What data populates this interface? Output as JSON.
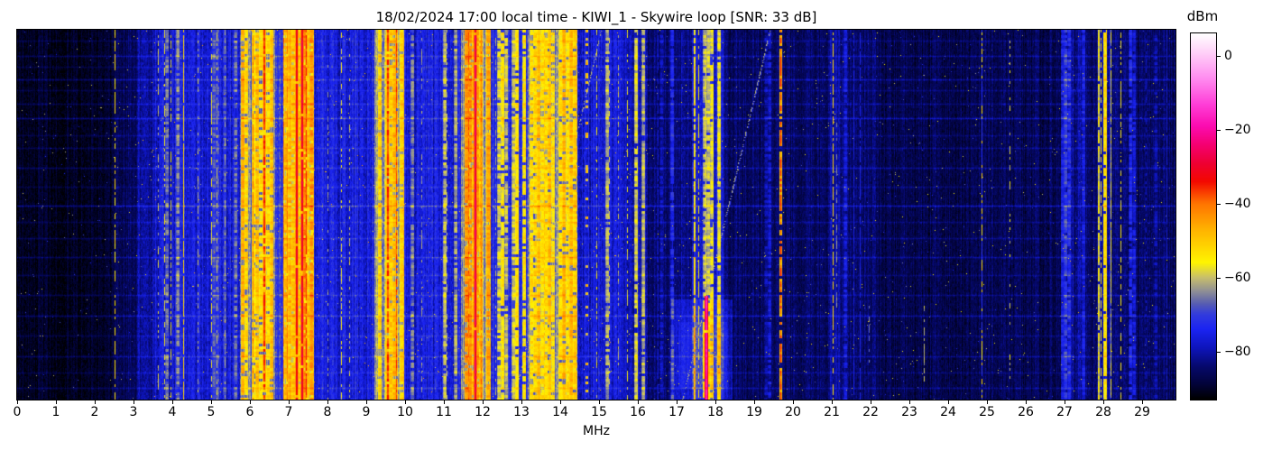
{
  "title": "18/02/2024 17:00 local time - KIWI_1 - Skywire loop [SNR: 33 dB]",
  "x_axis": {
    "label": "MHz",
    "tick_labels": [
      "0",
      "1",
      "2",
      "3",
      "4",
      "5",
      "6",
      "7",
      "8",
      "9",
      "10",
      "11",
      "12",
      "13",
      "14",
      "15",
      "16",
      "17",
      "18",
      "19",
      "20",
      "21",
      "22",
      "23",
      "24",
      "25",
      "26",
      "27",
      "28",
      "29"
    ]
  },
  "colorbar": {
    "label": "dBm",
    "ticks": [
      {
        "label": "0",
        "value": 0
      },
      {
        "label": "−20",
        "value": -20
      },
      {
        "label": "−40",
        "value": -40
      },
      {
        "label": "−60",
        "value": -60
      },
      {
        "label": "−80",
        "value": -80
      }
    ]
  },
  "chart_data": {
    "type": "heatmap",
    "subtype": "radio-spectrogram-waterfall",
    "title": "18/02/2024 17:00 local time - KIWI_1 - Skywire loop [SNR: 33 dB]",
    "xlabel": "MHz",
    "x_range": [
      0,
      29.86
    ],
    "x_tick_values": [
      0,
      1,
      2,
      3,
      4,
      5,
      6,
      7,
      8,
      9,
      10,
      11,
      12,
      13,
      14,
      15,
      16,
      17,
      18,
      19,
      20,
      21,
      22,
      23,
      24,
      25,
      26,
      27,
      28,
      29
    ],
    "y_axis": "time (unlabeled, no ticks)",
    "grid": false,
    "legend": "colorbar right",
    "colorbar": {
      "label": "dBm",
      "tick_values": [
        0,
        -20,
        -40,
        -60,
        -80
      ],
      "vmax": 6,
      "vmin": -93
    },
    "colormap_stops": [
      [
        6,
        "#ffffff"
      ],
      [
        1,
        "#ffd2f8"
      ],
      [
        -6,
        "#ff8df0"
      ],
      [
        -13,
        "#ff40d8"
      ],
      [
        -19,
        "#fb0cb0"
      ],
      [
        -24,
        "#f50072"
      ],
      [
        -29,
        "#ee0034"
      ],
      [
        -34,
        "#f30800"
      ],
      [
        -40,
        "#ff7400"
      ],
      [
        -47,
        "#ffb200"
      ],
      [
        -56,
        "#fff500"
      ],
      [
        -60,
        "#c8bf6b"
      ],
      [
        -64,
        "#8b8c98"
      ],
      [
        -67,
        "#595fb0"
      ],
      [
        -70,
        "#333cdc"
      ],
      [
        -74,
        "#1b24f2"
      ],
      [
        -79,
        "#0e15bd"
      ],
      [
        -84,
        "#06096e"
      ],
      [
        -89,
        "#020338"
      ],
      [
        -93,
        "#000000"
      ]
    ],
    "seed": 7,
    "regions_fields": [
      "f0_mhz",
      "f1_mhz",
      "noise_floor_dbm",
      "station_level_dbm",
      "station_density",
      "noise_amp_db"
    ],
    "regions": [
      [
        0,
        2.44,
        -90.5,
        null,
        0,
        3
      ],
      [
        2.44,
        3.1,
        -86,
        null,
        0,
        4
      ],
      [
        3.1,
        3.55,
        -81,
        null,
        0,
        5
      ],
      [
        3.55,
        4.1,
        -77,
        -66,
        0.25,
        6
      ],
      [
        4.1,
        4.5,
        -76,
        -64,
        0.3,
        6
      ],
      [
        4.5,
        5.75,
        -76.5,
        -66,
        0.35,
        6
      ],
      [
        5.75,
        6.65,
        -67,
        -50,
        0.8,
        6
      ],
      [
        6.65,
        6.87,
        -72,
        -54,
        0.35,
        6
      ],
      [
        6.87,
        7.65,
        -60,
        -45,
        0.88,
        6
      ],
      [
        7.65,
        8.25,
        -75.5,
        -62,
        0.2,
        6
      ],
      [
        8.25,
        8.65,
        -76,
        -58,
        0.3,
        6
      ],
      [
        8.65,
        9.2,
        -76,
        -64,
        0.3,
        6
      ],
      [
        9.2,
        9.97,
        -64,
        -48,
        0.75,
        6
      ],
      [
        9.97,
        11.45,
        -76,
        -62,
        0.18,
        6
      ],
      [
        11.45,
        12.2,
        -63,
        -46,
        0.78,
        6
      ],
      [
        12.2,
        13.15,
        -73.5,
        -57,
        0.4,
        6
      ],
      [
        13.15,
        14.45,
        -67,
        -51,
        0.68,
        6
      ],
      [
        14.45,
        15.55,
        -77,
        -60,
        0.22,
        6
      ],
      [
        15.55,
        16.25,
        -79,
        -60,
        0.3,
        5
      ],
      [
        16.25,
        17.45,
        -84,
        -77,
        0.3,
        4
      ],
      [
        17.45,
        18.2,
        -76,
        -58,
        0.45,
        5
      ],
      [
        18.2,
        19.55,
        -85,
        -79,
        0.2,
        4
      ],
      [
        19.55,
        19.8,
        -83,
        null,
        0,
        4
      ],
      [
        19.8,
        20.9,
        -85.5,
        null,
        0,
        4
      ],
      [
        20.9,
        21.2,
        -81,
        null,
        0,
        4
      ],
      [
        21.2,
        22.2,
        -84.5,
        -76,
        0.25,
        4
      ],
      [
        22.2,
        24.7,
        -87,
        null,
        0,
        4
      ],
      [
        24.7,
        25.45,
        -86,
        null,
        0,
        4
      ],
      [
        25.45,
        26.9,
        -86.5,
        null,
        0,
        4
      ],
      [
        26.9,
        27.55,
        -82,
        -72,
        0.55,
        5
      ],
      [
        27.55,
        27.85,
        -84.5,
        null,
        0,
        4
      ],
      [
        27.85,
        28.2,
        -80,
        -54,
        0.6,
        5
      ],
      [
        28.2,
        28.6,
        -83.5,
        null,
        0,
        4
      ],
      [
        28.6,
        29.45,
        -85.5,
        -78,
        0.15,
        4
      ],
      [
        29.45,
        29.86,
        -85.5,
        null,
        0,
        4
      ]
    ],
    "carriers_fields": [
      "f_mhz",
      "level_dbm",
      "dash_duty",
      "jitter_db",
      "y0_frac",
      "y1_frac",
      "width_px"
    ],
    "carriers": [
      [
        2.5,
        -53,
        0.6,
        6,
        0,
        1,
        1
      ],
      [
        3.62,
        -60,
        0.35,
        6,
        0,
        1,
        1
      ],
      [
        3.79,
        -56,
        0.5,
        6,
        0,
        1,
        1
      ],
      [
        3.95,
        -57,
        0.45,
        6,
        0,
        1,
        1
      ],
      [
        4.27,
        -52,
        0.92,
        5,
        0,
        1,
        1
      ],
      [
        4.65,
        -61,
        0.4,
        6,
        0,
        1,
        1
      ],
      [
        5.0,
        -57,
        0.55,
        6,
        0,
        1,
        1
      ],
      [
        5.14,
        -59,
        0.45,
        6,
        0,
        1,
        1
      ],
      [
        5.36,
        -62,
        0.4,
        6,
        0,
        1,
        1
      ],
      [
        6.07,
        -41,
        0.85,
        7,
        0,
        1,
        1
      ],
      [
        6.35,
        -36,
        0.9,
        7,
        0,
        1,
        2
      ],
      [
        6.95,
        -42,
        0.85,
        7,
        0,
        1,
        1
      ],
      [
        7.18,
        -32,
        0.95,
        6,
        0,
        1,
        2
      ],
      [
        7.32,
        -30,
        0.95,
        6,
        0,
        1,
        2
      ],
      [
        7.44,
        -35,
        0.9,
        6,
        0,
        1,
        1
      ],
      [
        8.0,
        -63,
        0.3,
        6,
        0,
        1,
        1
      ],
      [
        8.35,
        -57,
        0.5,
        6,
        0,
        1,
        1
      ],
      [
        8.56,
        -60,
        0.4,
        6,
        0,
        1,
        1
      ],
      [
        9.53,
        -37,
        0.9,
        7,
        0,
        1,
        2
      ],
      [
        9.76,
        -37,
        0.88,
        7,
        0,
        1,
        1
      ],
      [
        10.42,
        -63,
        0.4,
        6,
        0,
        1,
        1
      ],
      [
        11.08,
        -62,
        0.4,
        6,
        0,
        1,
        1
      ],
      [
        11.62,
        -39,
        0.85,
        7,
        0,
        1,
        1
      ],
      [
        11.79,
        -28,
        0.93,
        6,
        0,
        1,
        2
      ],
      [
        11.95,
        -41,
        0.8,
        7,
        0,
        1,
        1
      ],
      [
        12.32,
        -62,
        0.35,
        6,
        0,
        1,
        1
      ],
      [
        13.58,
        -50,
        0.8,
        7,
        0,
        1,
        1
      ],
      [
        13.72,
        -52,
        0.7,
        7,
        0,
        1,
        1
      ],
      [
        14.22,
        -52,
        0.5,
        8,
        0,
        1,
        1
      ],
      [
        14.68,
        -44,
        0.22,
        10,
        0,
        1,
        1
      ],
      [
        14.92,
        -58,
        0.35,
        6,
        0,
        1,
        1
      ],
      [
        15.25,
        -59,
        0.4,
        6,
        0,
        1,
        1
      ],
      [
        15.48,
        -61,
        0.35,
        6,
        0,
        1,
        1
      ],
      [
        15.72,
        -57,
        0.5,
        6,
        0,
        1,
        1
      ],
      [
        15.97,
        -58,
        0.45,
        6,
        0,
        1,
        1
      ],
      [
        16.12,
        -63,
        0.3,
        6,
        0,
        1,
        1
      ],
      [
        16.52,
        -78,
        0.8,
        4,
        0,
        1,
        1
      ],
      [
        16.88,
        -77,
        0.8,
        4,
        0,
        1,
        1
      ],
      [
        17.12,
        -78,
        0.7,
        4,
        0,
        1,
        1
      ],
      [
        17.56,
        -56,
        0.65,
        6,
        0,
        1,
        1
      ],
      [
        17.75,
        -56,
        0.7,
        6,
        0,
        0.72,
        1
      ],
      [
        17.75,
        -18,
        0.96,
        5,
        0.72,
        1,
        2
      ],
      [
        17.92,
        -57,
        0.6,
        6,
        0,
        1,
        1
      ],
      [
        18.07,
        -59,
        0.5,
        6,
        0,
        1,
        1
      ],
      [
        19.68,
        -36,
        0.8,
        12,
        0,
        1,
        1
      ],
      [
        21.02,
        -52,
        0.65,
        6,
        0,
        1,
        1
      ],
      [
        21.12,
        -64,
        0.5,
        6,
        0.25,
        0.75,
        1
      ],
      [
        21.55,
        -75,
        0.85,
        4,
        0,
        1,
        1
      ],
      [
        21.72,
        -74,
        0.8,
        4,
        0,
        1,
        1
      ],
      [
        21.95,
        -65,
        0.35,
        5,
        0.72,
        0.9,
        1
      ],
      [
        23.37,
        -61,
        0.5,
        5,
        0.74,
        0.95,
        1
      ],
      [
        24.85,
        -72,
        0.95,
        4,
        0,
        1,
        1
      ],
      [
        24.85,
        -54,
        0.3,
        8,
        0,
        1,
        1
      ],
      [
        25.58,
        -59,
        0.3,
        6,
        0,
        1,
        1
      ],
      [
        27.92,
        -54,
        0.6,
        7,
        0,
        1,
        1
      ],
      [
        28.06,
        -52,
        0.65,
        7,
        0,
        1,
        1
      ],
      [
        28.18,
        -56,
        0.5,
        7,
        0,
        1,
        1
      ],
      [
        28.45,
        -56,
        0.55,
        7,
        0,
        1,
        1
      ],
      [
        29.1,
        -79,
        0.5,
        4,
        0,
        1,
        1
      ],
      [
        29.62,
        -76,
        0.9,
        4,
        0,
        1,
        1
      ]
    ],
    "chirps_fields": [
      "f_at_bottom_mhz",
      "f_at_top_mhz",
      "level_dbm"
    ],
    "chirps": [
      [
        12.8,
        15.05,
        -62
      ],
      [
        17.15,
        19.4,
        -62
      ]
    ],
    "impulse_rows_fields": [
      "y_frac",
      "gain_db"
    ],
    "impulse_rows": [
      [
        0.03,
        4
      ],
      [
        0.07,
        6
      ],
      [
        0.1,
        4
      ],
      [
        0.135,
        7
      ],
      [
        0.165,
        4
      ],
      [
        0.2,
        5
      ],
      [
        0.24,
        8
      ],
      [
        0.285,
        4
      ],
      [
        0.32,
        5
      ],
      [
        0.375,
        6
      ],
      [
        0.425,
        4
      ],
      [
        0.476,
        9
      ],
      [
        0.52,
        4
      ],
      [
        0.565,
        5
      ],
      [
        0.615,
        6
      ],
      [
        0.665,
        4
      ],
      [
        0.72,
        5
      ],
      [
        0.775,
        7
      ],
      [
        0.83,
        4
      ],
      [
        0.885,
        6
      ],
      [
        0.93,
        4
      ],
      [
        0.97,
        5
      ]
    ],
    "patches_fields": [
      "f0_mhz",
      "f1_mhz",
      "y0_frac",
      "y1_frac",
      "gain_db"
    ],
    "patches": [
      [
        16.85,
        18.45,
        0.73,
        1,
        6
      ],
      [
        17.05,
        18.3,
        0.79,
        0.97,
        3
      ]
    ]
  }
}
